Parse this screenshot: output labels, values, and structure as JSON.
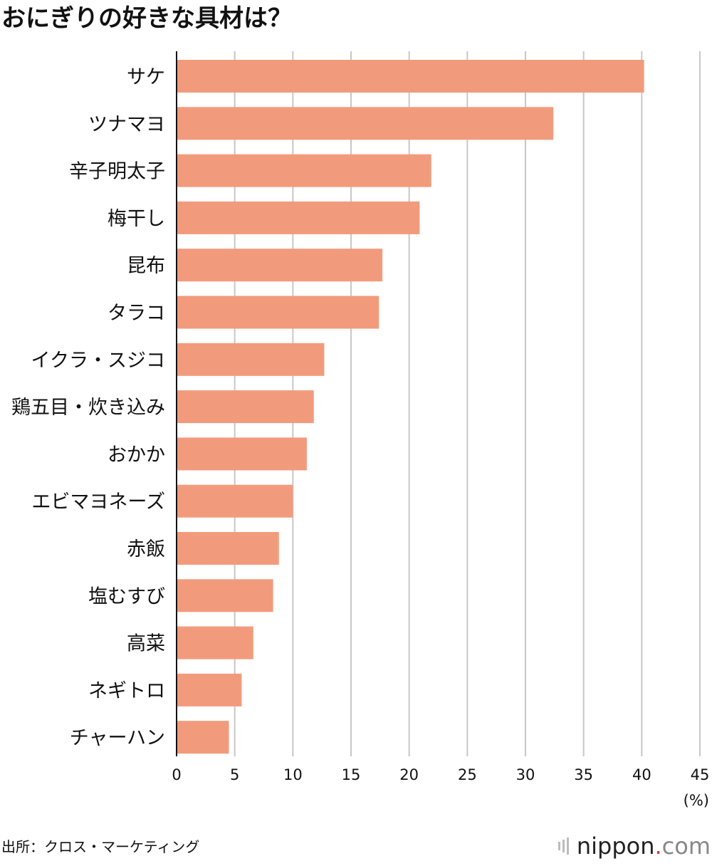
{
  "chart_data": {
    "type": "bar",
    "orientation": "horizontal",
    "title": "おにぎりの好きな具材は？",
    "categories": [
      "サケ",
      "ツナマヨ",
      "辛子明太子",
      "梅干し",
      "昆布",
      "タラコ",
      "イクラ・スジコ",
      "鶏五目・炊き込み",
      "おかか",
      "エビマヨネーズ",
      "赤飯",
      "塩むすび",
      "高菜",
      "ネギトロ",
      "チャーハン"
    ],
    "values": [
      40.2,
      32.4,
      21.9,
      20.9,
      17.7,
      17.4,
      12.7,
      11.8,
      11.2,
      10.0,
      8.8,
      8.3,
      6.6,
      5.6,
      4.5
    ],
    "xlim": [
      0,
      45
    ],
    "xticks": [
      0,
      5,
      10,
      15,
      20,
      25,
      30,
      35,
      40,
      45
    ],
    "unit": "(%)",
    "grid": true,
    "bar_color": "#f29b7c"
  },
  "source": "出所：クロス・マーケティング",
  "logo": {
    "name": "nippon",
    "dot": ".",
    "tld": "com"
  }
}
